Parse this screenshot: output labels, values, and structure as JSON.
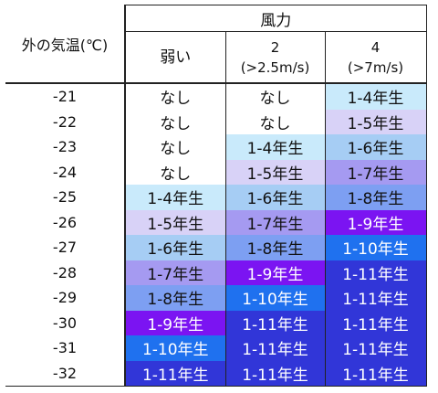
{
  "table": {
    "temp_header": "外の気温(℃)",
    "wind_header": "風力",
    "wind_columns": [
      {
        "line1": "弱い",
        "line2": ""
      },
      {
        "line1": "2",
        "line2": "(>2.5m/s)"
      },
      {
        "line1": "4",
        "line2": "(>7m/s)"
      }
    ],
    "rows": [
      {
        "temp": "-21",
        "cells": [
          "なし",
          "なし",
          "1-4年生"
        ]
      },
      {
        "temp": "-22",
        "cells": [
          "なし",
          "なし",
          "1-5年生"
        ]
      },
      {
        "temp": "-23",
        "cells": [
          "なし",
          "1-4年生",
          "1-6年生"
        ]
      },
      {
        "temp": "-24",
        "cells": [
          "なし",
          "1-5年生",
          "1-7年生"
        ]
      },
      {
        "temp": "-25",
        "cells": [
          "1-4年生",
          "1-6年生",
          "1-8年生"
        ]
      },
      {
        "temp": "-26",
        "cells": [
          "1-5年生",
          "1-7年生",
          "1-9年生"
        ]
      },
      {
        "temp": "-27",
        "cells": [
          "1-6年生",
          "1-8年生",
          "1-10年生"
        ]
      },
      {
        "temp": "-28",
        "cells": [
          "1-7年生",
          "1-9年生",
          "1-11年生"
        ]
      },
      {
        "temp": "-29",
        "cells": [
          "1-8年生",
          "1-10年生",
          "1-11年生"
        ]
      },
      {
        "temp": "-30",
        "cells": [
          "1-9年生",
          "1-11年生",
          "1-11年生"
        ]
      },
      {
        "temp": "-31",
        "cells": [
          "1-10年生",
          "1-11年生",
          "1-11年生"
        ]
      },
      {
        "temp": "-32",
        "cells": [
          "1-11年生",
          "1-11年生",
          "1-11年生"
        ]
      }
    ]
  },
  "colors": {
    "なし": "#ffffff",
    "1-4年生": "#c9eafb",
    "1-5年生": "#d8d2f7",
    "1-6年生": "#a6cdf4",
    "1-7年生": "#a59af1",
    "1-8年生": "#7d9ff2",
    "1-9年生": "#7b14f2",
    "1-10年生": "#1f71ef",
    "1-11年生": "#3136d8"
  }
}
